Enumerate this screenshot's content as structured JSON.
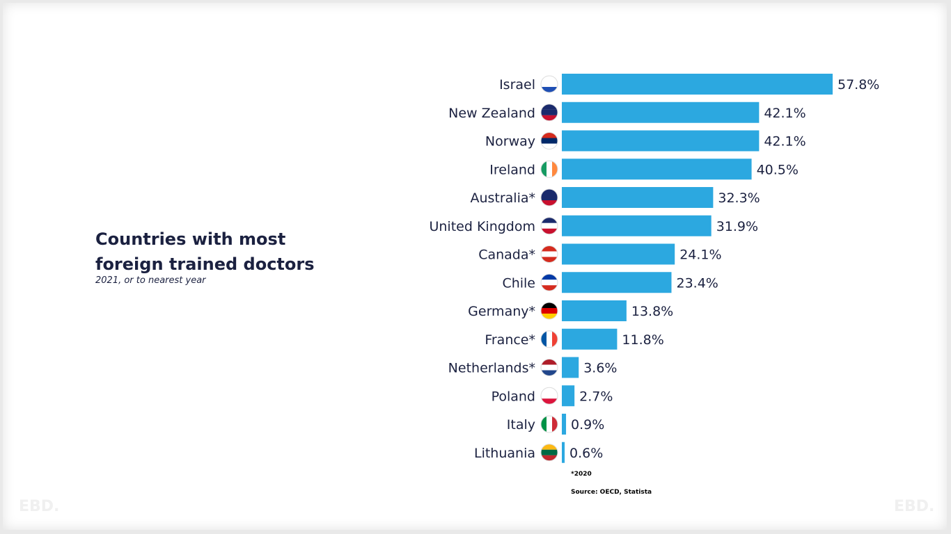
{
  "chart_data": {
    "type": "bar",
    "orientation": "horizontal",
    "title": "Countries with most foreign trained doctors",
    "subtitle": "2021, or to nearest year",
    "categories": [
      "Israel",
      "New Zealand",
      "Norway",
      "Ireland",
      "Australia*",
      "United Kingdom",
      "Canada*",
      "Chile",
      "Germany*",
      "France*",
      "Netherlands*",
      "Poland",
      "Italy",
      "Lithuania"
    ],
    "values": [
      57.8,
      42.1,
      42.1,
      40.5,
      32.3,
      31.9,
      24.1,
      23.4,
      13.8,
      11.8,
      3.6,
      2.7,
      0.9,
      0.6
    ],
    "value_labels": [
      "57.8%",
      "42.1%",
      "42.1%",
      "40.5%",
      "32.3%",
      "31.9%",
      "24.1%",
      "23.4%",
      "13.8%",
      "11.8%",
      "3.6%",
      "2.7%",
      "0.9%",
      "0.6%"
    ],
    "flag_icons": [
      "israel-flag",
      "new-zealand-flag",
      "norway-flag",
      "ireland-flag",
      "australia-flag",
      "uk-flag",
      "canada-flag",
      "chile-flag",
      "germany-flag",
      "france-flag",
      "netherlands-flag",
      "poland-flag",
      "italy-flag",
      "lithuania-flag"
    ],
    "unit": "%",
    "bar_color": "#2ca8e0",
    "grid": false,
    "note": "*2020",
    "source": "Source: OECD, Statista"
  },
  "watermark": "EBD."
}
